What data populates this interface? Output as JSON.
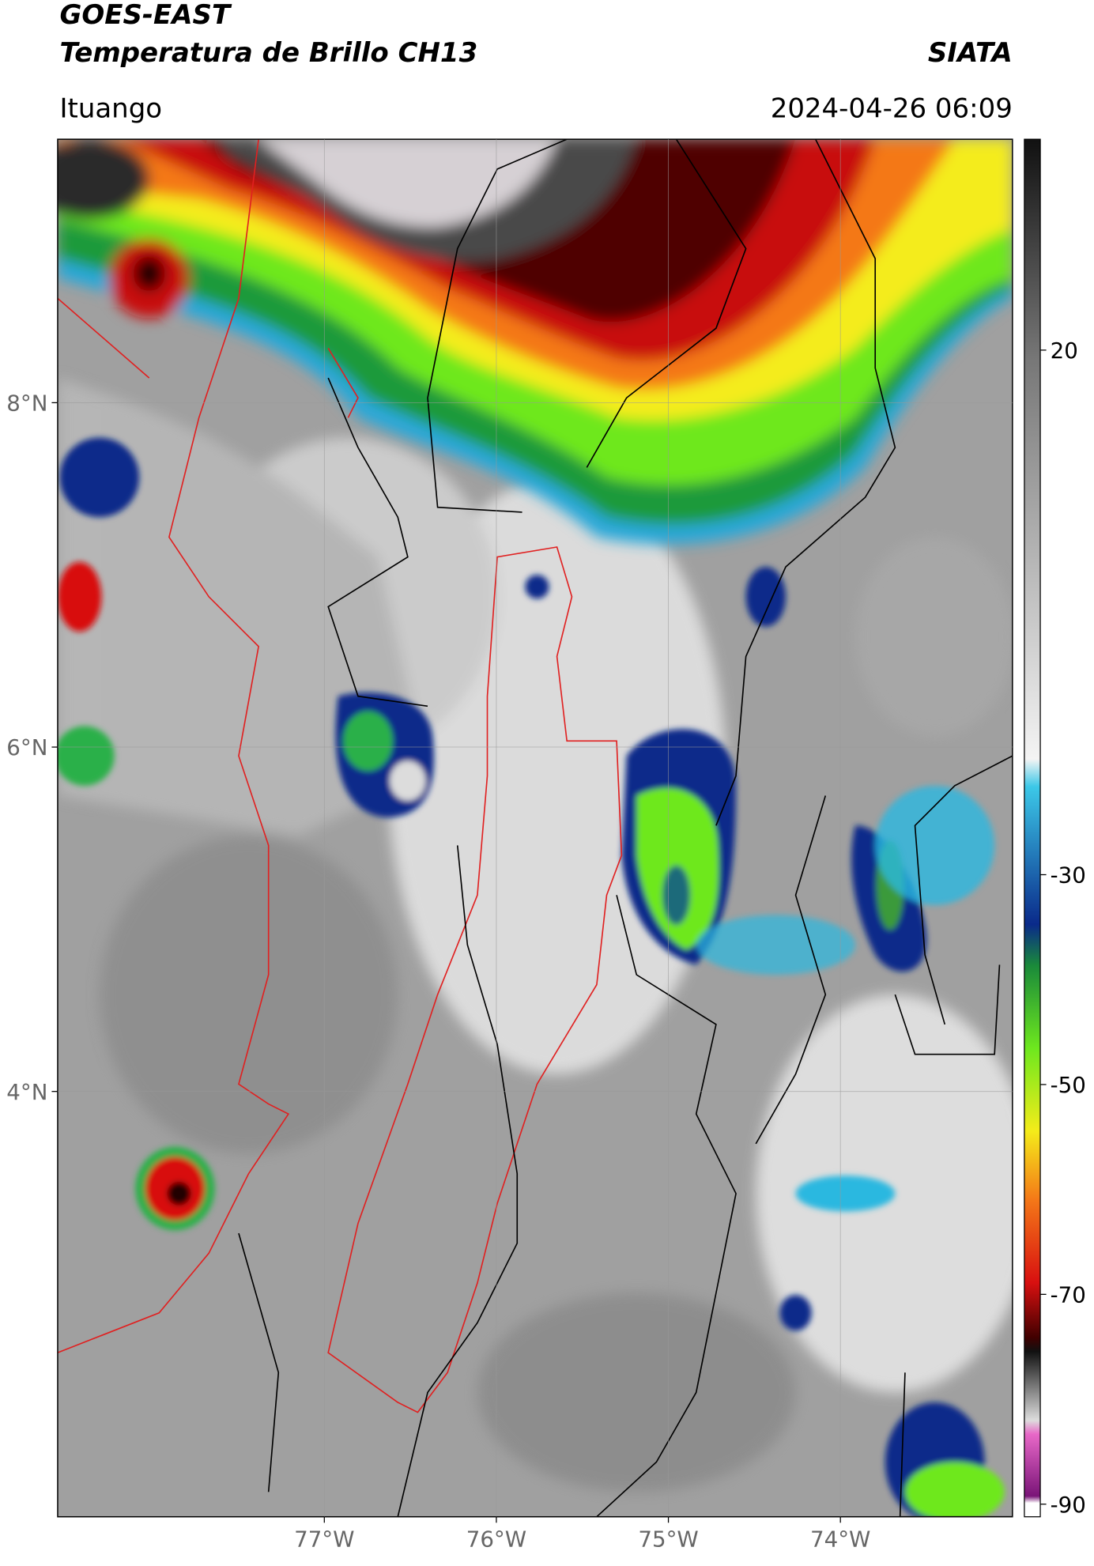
{
  "header": {
    "satellite": "GOES-EAST",
    "product": "Temperatura de Brillo CH13",
    "source": "SIATA",
    "location": "Ituango",
    "datetime": "2024-04-26 06:09"
  },
  "map": {
    "xlim": [
      -78.55,
      -73.0
    ],
    "ylim": [
      1.53,
      9.53
    ],
    "xticks": [
      {
        "value": -77,
        "label": "77°W"
      },
      {
        "value": -76,
        "label": "76°W"
      },
      {
        "value": -75,
        "label": "75°W"
      },
      {
        "value": -74,
        "label": "74°W"
      }
    ],
    "yticks": [
      {
        "value": 8,
        "label": "8°N"
      },
      {
        "value": 6,
        "label": "6°N"
      },
      {
        "value": 4,
        "label": "4°N"
      }
    ],
    "grid": true
  },
  "colorbar": {
    "lim": [
      -91.2,
      40.1
    ],
    "ticks": [
      20,
      -30,
      -50,
      -70,
      -90
    ]
  }
}
